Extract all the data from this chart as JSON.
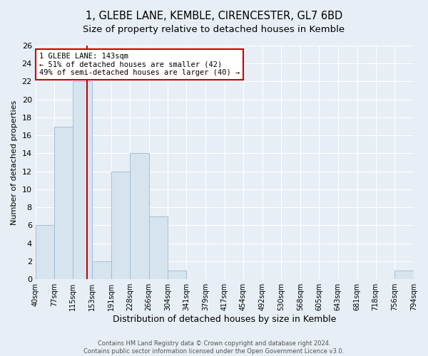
{
  "title": "1, GLEBE LANE, KEMBLE, CIRENCESTER, GL7 6BD",
  "subtitle": "Size of property relative to detached houses in Kemble",
  "xlabel": "Distribution of detached houses by size in Kemble",
  "ylabel": "Number of detached properties",
  "bin_edges": [
    40,
    77,
    115,
    153,
    191,
    228,
    266,
    304,
    341,
    379,
    417,
    454,
    492,
    530,
    568,
    605,
    643,
    681,
    718,
    756,
    794
  ],
  "bin_counts": [
    6,
    17,
    22,
    2,
    12,
    14,
    7,
    1,
    0,
    0,
    0,
    0,
    0,
    0,
    0,
    0,
    0,
    0,
    0,
    1
  ],
  "bar_color": "#d6e4f0",
  "bar_edgecolor": "#9ab8d0",
  "property_size": 143,
  "vline_color": "#cc0000",
  "annotation_title": "1 GLEBE LANE: 143sqm",
  "annotation_line1": "← 51% of detached houses are smaller (42)",
  "annotation_line2": "49% of semi-detached houses are larger (40) →",
  "annotation_box_facecolor": "#ffffff",
  "annotation_box_edgecolor": "#cc0000",
  "ylim": [
    0,
    26
  ],
  "yticks": [
    0,
    2,
    4,
    6,
    8,
    10,
    12,
    14,
    16,
    18,
    20,
    22,
    24,
    26
  ],
  "tick_labels": [
    "40sqm",
    "77sqm",
    "115sqm",
    "153sqm",
    "191sqm",
    "228sqm",
    "266sqm",
    "304sqm",
    "341sqm",
    "379sqm",
    "417sqm",
    "454sqm",
    "492sqm",
    "530sqm",
    "568sqm",
    "605sqm",
    "643sqm",
    "681sqm",
    "718sqm",
    "756sqm",
    "794sqm"
  ],
  "footer_line1": "Contains HM Land Registry data © Crown copyright and database right 2024.",
  "footer_line2": "Contains public sector information licensed under the Open Government Licence v3.0.",
  "fig_facecolor": "#e8eef5",
  "plot_facecolor": "#e8eef5",
  "grid_color": "#ffffff",
  "title_fontsize": 10.5,
  "subtitle_fontsize": 9.5,
  "xlabel_fontsize": 9,
  "ylabel_fontsize": 8,
  "tick_fontsize": 7,
  "ytick_fontsize": 8,
  "footer_fontsize": 6,
  "annotation_fontsize": 7.5
}
